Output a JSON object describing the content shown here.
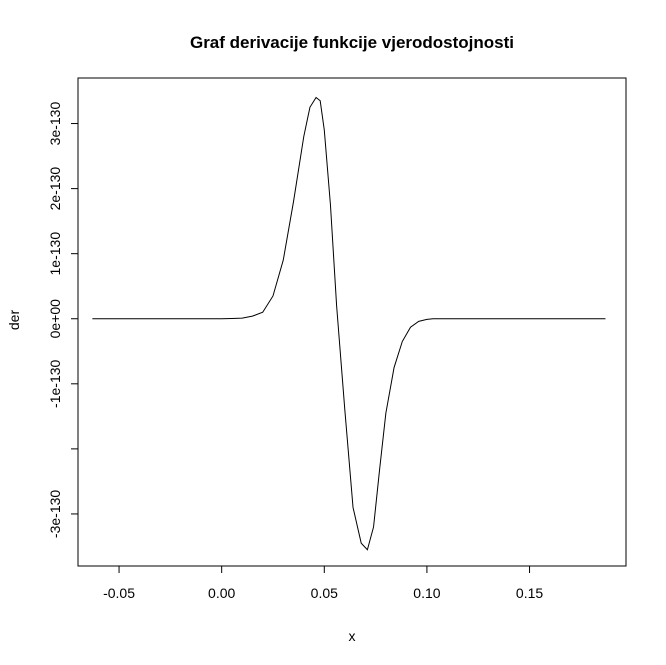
{
  "chart_data": {
    "type": "line",
    "title": "Graf derivacije funkcije vjerodostojnosti",
    "xlabel": "x",
    "ylabel": "der",
    "xlim": [
      -0.07,
      0.197
    ],
    "ylim": [
      -3.8e-130,
      3.7e-130
    ],
    "grid": false,
    "x_ticks": [
      {
        "value": -0.05,
        "label": "-0.05"
      },
      {
        "value": 0.0,
        "label": "0.00"
      },
      {
        "value": 0.05,
        "label": "0.05"
      },
      {
        "value": 0.1,
        "label": "0.10"
      },
      {
        "value": 0.15,
        "label": "0.15"
      }
    ],
    "y_ticks": [
      {
        "value": -3e-130,
        "label": "-3e-130"
      },
      {
        "value": -2e-130,
        "label": ""
      },
      {
        "value": -1e-130,
        "label": "-1e-130"
      },
      {
        "value": 0,
        "label": "0e+00"
      },
      {
        "value": 1e-130,
        "label": "1e-130"
      },
      {
        "value": 2e-130,
        "label": "2e-130"
      },
      {
        "value": 3e-130,
        "label": "3e-130"
      }
    ],
    "series": [
      {
        "color": "#000000",
        "x": [
          -0.063,
          -0.05,
          -0.04,
          -0.03,
          -0.02,
          -0.01,
          0.0,
          0.005,
          0.01,
          0.015,
          0.02,
          0.025,
          0.03,
          0.035,
          0.04,
          0.043,
          0.046,
          0.048,
          0.05,
          0.053,
          0.056,
          0.06,
          0.064,
          0.068,
          0.071,
          0.074,
          0.077,
          0.08,
          0.084,
          0.088,
          0.092,
          0.096,
          0.1,
          0.103,
          0.11,
          0.12,
          0.13,
          0.15,
          0.17,
          0.187
        ],
        "y": [
          0,
          0,
          0,
          0,
          0,
          0,
          0,
          4e-133,
          1e-132,
          4e-132,
          1e-131,
          3.5e-131,
          9e-131,
          1.8e-130,
          2.8e-130,
          3.25e-130,
          3.4e-130,
          3.35e-130,
          2.9e-130,
          1.75e-130,
          2e-131,
          -1.4e-130,
          -2.9e-130,
          -3.45e-130,
          -3.55e-130,
          -3.2e-130,
          -2.3e-130,
          -1.45e-130,
          -7.5e-131,
          -3.5e-131,
          -1.3e-131,
          -4e-132,
          -1e-132,
          0,
          0,
          0,
          0,
          0,
          0,
          0
        ]
      }
    ]
  }
}
